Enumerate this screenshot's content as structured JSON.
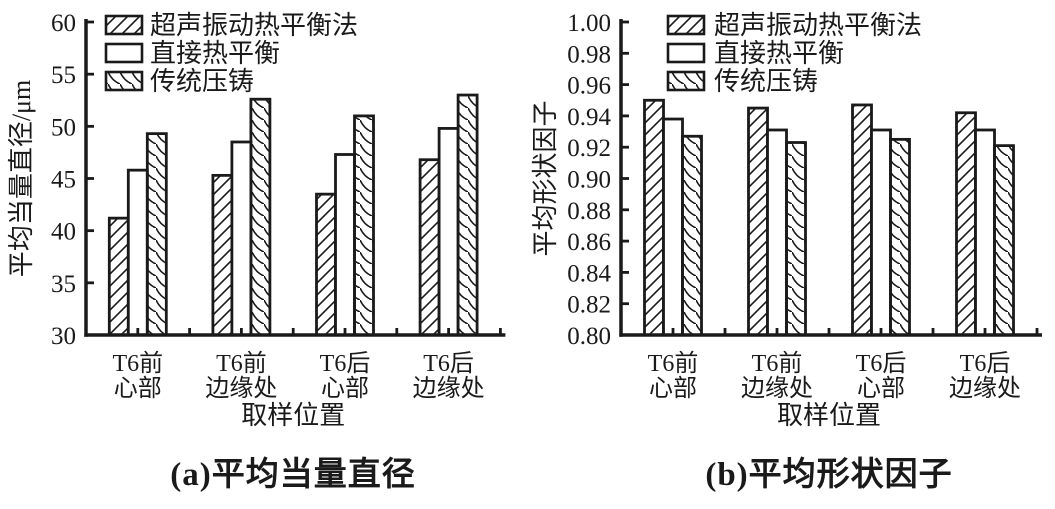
{
  "figure": {
    "background": "#ffffff",
    "ink_color": "#1a1a1a"
  },
  "chart_data": [
    {
      "type": "bar",
      "panel_label": "(a)",
      "caption": "(a)平均当量直径",
      "ylabel": "平均当量直径/μm",
      "xlabel": "取样位置",
      "ylim": [
        30,
        60
      ],
      "ytick_step": 5,
      "ytick_labels": [
        "30",
        "35",
        "40",
        "45",
        "50",
        "55",
        "60"
      ],
      "categories": [
        "T6前\n心部",
        "T6前\n边缘处",
        "T6后\n心部",
        "T6后\n边缘处"
      ],
      "grid": false,
      "legend_position": "top-left-inside",
      "series": [
        {
          "name": "超声振动热平衡法",
          "hatch": "forward-diagonal",
          "values": [
            41.2,
            45.3,
            43.5,
            46.8
          ]
        },
        {
          "name": "直接热平衡",
          "hatch": "none",
          "values": [
            45.8,
            48.5,
            47.3,
            49.8
          ]
        },
        {
          "name": "传统压铸",
          "hatch": "back-diagonal-curved",
          "values": [
            49.3,
            52.6,
            51.0,
            53.0
          ]
        }
      ]
    },
    {
      "type": "bar",
      "panel_label": "(b)",
      "caption": "(b)平均形状因子",
      "ylabel": "平均形状因子",
      "xlabel": "取样位置",
      "ylim": [
        0.8,
        1.0
      ],
      "ytick_step": 0.02,
      "ytick_labels": [
        "0.80",
        "0.82",
        "0.84",
        "0.86",
        "0.88",
        "0.90",
        "0.92",
        "0.94",
        "0.96",
        "0.98",
        "1.00"
      ],
      "categories": [
        "T6前\n心部",
        "T6前\n边缘处",
        "T6后\n心部",
        "T6后\n边缘处"
      ],
      "grid": false,
      "legend_position": "top-left-inside",
      "series": [
        {
          "name": "超声振动热平衡法",
          "hatch": "forward-diagonal",
          "values": [
            0.95,
            0.945,
            0.947,
            0.942
          ]
        },
        {
          "name": "直接热平衡",
          "hatch": "none",
          "values": [
            0.938,
            0.931,
            0.931,
            0.931
          ]
        },
        {
          "name": "传统压铸",
          "hatch": "back-diagonal-curved",
          "values": [
            0.927,
            0.923,
            0.925,
            0.921
          ]
        }
      ]
    }
  ]
}
